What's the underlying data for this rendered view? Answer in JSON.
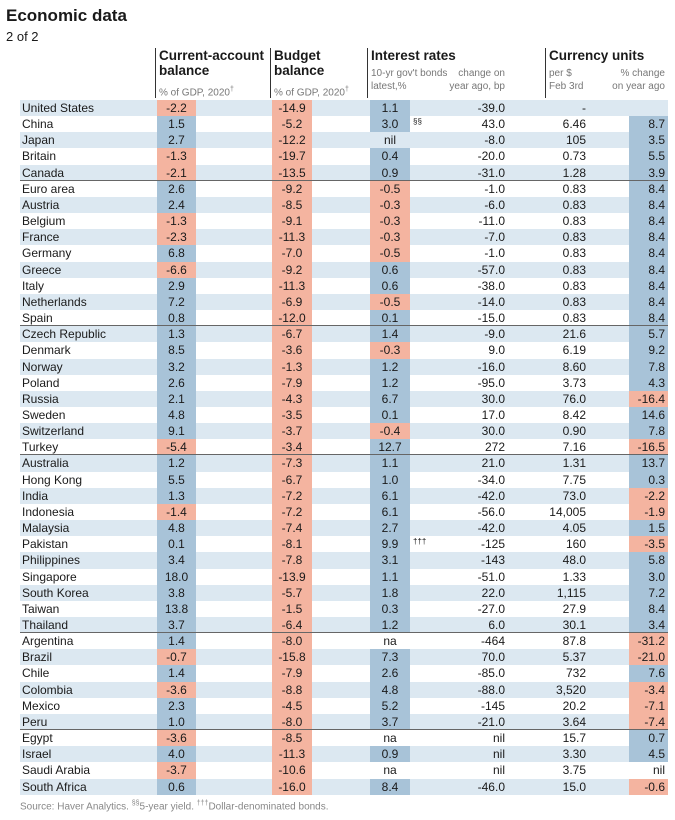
{
  "header": {
    "title": "Economic data",
    "subtitle": "2 of 2"
  },
  "columns": {
    "current_account": {
      "title": "Current-account",
      "title2": "balance",
      "sub": "% of GDP, 2020",
      "mark": "†"
    },
    "budget": {
      "title": "Budget",
      "title2": "balance",
      "sub": "% of GDP, 2020",
      "mark": "†"
    },
    "interest": {
      "title": "Interest rates",
      "sub1a": "10-yr gov't bonds",
      "sub1b": "latest,%",
      "sub2a": "change on",
      "sub2b": "year ago, bp"
    },
    "currency": {
      "title": "Currency units",
      "sub1a": "per $",
      "sub1b": "Feb 3rd",
      "sub2a": "% change",
      "sub2b": "on year ago"
    }
  },
  "footer": {
    "source": "Source: Haver Analytics. ",
    "n1mark": "§§",
    "n1": "5-year yield. ",
    "n2mark": "†††",
    "n2": "Dollar-denominated bonds."
  },
  "colors": {
    "positive": "#a8c3d8",
    "negative": "#f4b4a0",
    "row_shade": "#dce8f1"
  },
  "chart_data": {
    "type": "table",
    "title": "Economic data",
    "group_breaks_after": [
      "Canada",
      "Spain",
      "Turkey",
      "Thailand",
      "Peru"
    ],
    "rows": [
      {
        "country": "United States",
        "ca": "-2.2",
        "budget": "-14.9",
        "ir": "1.1",
        "note": "",
        "bp": "-39.0",
        "fx": "-",
        "pc": ""
      },
      {
        "country": "China",
        "ca": "1.5",
        "budget": "-5.2",
        "ir": "3.0",
        "note": "§§",
        "bp": "43.0",
        "fx": "6.46",
        "pc": "8.7"
      },
      {
        "country": "Japan",
        "ca": "2.7",
        "budget": "-12.2",
        "ir": "nil",
        "note": "",
        "bp": "-8.0",
        "fx": "105",
        "pc": "3.5"
      },
      {
        "country": "Britain",
        "ca": "-1.3",
        "budget": "-19.7",
        "ir": "0.4",
        "note": "",
        "bp": "-20.0",
        "fx": "0.73",
        "pc": "5.5"
      },
      {
        "country": "Canada",
        "ca": "-2.1",
        "budget": "-13.5",
        "ir": "0.9",
        "note": "",
        "bp": "-31.0",
        "fx": "1.28",
        "pc": "3.9"
      },
      {
        "country": "Euro area",
        "ca": "2.6",
        "budget": "-9.2",
        "ir": "-0.5",
        "note": "",
        "bp": "-1.0",
        "fx": "0.83",
        "pc": "8.4"
      },
      {
        "country": "Austria",
        "ca": "2.4",
        "budget": "-8.5",
        "ir": "-0.3",
        "note": "",
        "bp": "-6.0",
        "fx": "0.83",
        "pc": "8.4"
      },
      {
        "country": "Belgium",
        "ca": "-1.3",
        "budget": "-9.1",
        "ir": "-0.3",
        "note": "",
        "bp": "-11.0",
        "fx": "0.83",
        "pc": "8.4"
      },
      {
        "country": "France",
        "ca": "-2.3",
        "budget": "-11.3",
        "ir": "-0.3",
        "note": "",
        "bp": "-7.0",
        "fx": "0.83",
        "pc": "8.4"
      },
      {
        "country": "Germany",
        "ca": "6.8",
        "budget": "-7.0",
        "ir": "-0.5",
        "note": "",
        "bp": "-1.0",
        "fx": "0.83",
        "pc": "8.4"
      },
      {
        "country": "Greece",
        "ca": "-6.6",
        "budget": "-9.2",
        "ir": "0.6",
        "note": "",
        "bp": "-57.0",
        "fx": "0.83",
        "pc": "8.4"
      },
      {
        "country": "Italy",
        "ca": "2.9",
        "budget": "-11.3",
        "ir": "0.6",
        "note": "",
        "bp": "-38.0",
        "fx": "0.83",
        "pc": "8.4"
      },
      {
        "country": "Netherlands",
        "ca": "7.2",
        "budget": "-6.9",
        "ir": "-0.5",
        "note": "",
        "bp": "-14.0",
        "fx": "0.83",
        "pc": "8.4"
      },
      {
        "country": "Spain",
        "ca": "0.8",
        "budget": "-12.0",
        "ir": "0.1",
        "note": "",
        "bp": "-15.0",
        "fx": "0.83",
        "pc": "8.4"
      },
      {
        "country": "Czech Republic",
        "ca": "1.3",
        "budget": "-6.7",
        "ir": "1.4",
        "note": "",
        "bp": "-9.0",
        "fx": "21.6",
        "pc": "5.7"
      },
      {
        "country": "Denmark",
        "ca": "8.5",
        "budget": "-3.6",
        "ir": "-0.3",
        "note": "",
        "bp": "9.0",
        "fx": "6.19",
        "pc": "9.2"
      },
      {
        "country": "Norway",
        "ca": "3.2",
        "budget": "-1.3",
        "ir": "1.2",
        "note": "",
        "bp": "-16.0",
        "fx": "8.60",
        "pc": "7.8"
      },
      {
        "country": "Poland",
        "ca": "2.6",
        "budget": "-7.9",
        "ir": "1.2",
        "note": "",
        "bp": "-95.0",
        "fx": "3.73",
        "pc": "4.3"
      },
      {
        "country": "Russia",
        "ca": "2.1",
        "budget": "-4.3",
        "ir": "6.7",
        "note": "",
        "bp": "30.0",
        "fx": "76.0",
        "pc": "-16.4"
      },
      {
        "country": "Sweden",
        "ca": "4.8",
        "budget": "-3.5",
        "ir": "0.1",
        "note": "",
        "bp": "17.0",
        "fx": "8.42",
        "pc": "14.6"
      },
      {
        "country": "Switzerland",
        "ca": "9.1",
        "budget": "-3.7",
        "ir": "-0.4",
        "note": "",
        "bp": "30.0",
        "fx": "0.90",
        "pc": "7.8"
      },
      {
        "country": "Turkey",
        "ca": "-5.4",
        "budget": "-3.4",
        "ir": "12.7",
        "note": "",
        "bp": "272",
        "fx": "7.16",
        "pc": "-16.5"
      },
      {
        "country": "Australia",
        "ca": "1.2",
        "budget": "-7.3",
        "ir": "1.1",
        "note": "",
        "bp": "21.0",
        "fx": "1.31",
        "pc": "13.7"
      },
      {
        "country": "Hong Kong",
        "ca": "5.5",
        "budget": "-6.7",
        "ir": "1.0",
        "note": "",
        "bp": "-34.0",
        "fx": "7.75",
        "pc": "0.3"
      },
      {
        "country": "India",
        "ca": "1.3",
        "budget": "-7.2",
        "ir": "6.1",
        "note": "",
        "bp": "-42.0",
        "fx": "73.0",
        "pc": "-2.2"
      },
      {
        "country": "Indonesia",
        "ca": "-1.4",
        "budget": "-7.2",
        "ir": "6.1",
        "note": "",
        "bp": "-56.0",
        "fx": "14,005",
        "pc": "-1.9"
      },
      {
        "country": "Malaysia",
        "ca": "4.8",
        "budget": "-7.4",
        "ir": "2.7",
        "note": "",
        "bp": "-42.0",
        "fx": "4.05",
        "pc": "1.5"
      },
      {
        "country": "Pakistan",
        "ca": "0.1",
        "budget": "-8.1",
        "ir": "9.9",
        "note": "†††",
        "bp": "-125",
        "fx": "160",
        "pc": "-3.5"
      },
      {
        "country": "Philippines",
        "ca": "3.4",
        "budget": "-7.8",
        "ir": "3.1",
        "note": "",
        "bp": "-143",
        "fx": "48.0",
        "pc": "5.8"
      },
      {
        "country": "Singapore",
        "ca": "18.0",
        "budget": "-13.9",
        "ir": "1.1",
        "note": "",
        "bp": "-51.0",
        "fx": "1.33",
        "pc": "3.0"
      },
      {
        "country": "South Korea",
        "ca": "3.8",
        "budget": "-5.7",
        "ir": "1.8",
        "note": "",
        "bp": "22.0",
        "fx": "1,115",
        "pc": "7.2"
      },
      {
        "country": "Taiwan",
        "ca": "13.8",
        "budget": "-1.5",
        "ir": "0.3",
        "note": "",
        "bp": "-27.0",
        "fx": "27.9",
        "pc": "8.4"
      },
      {
        "country": "Thailand",
        "ca": "3.7",
        "budget": "-6.4",
        "ir": "1.2",
        "note": "",
        "bp": "6.0",
        "fx": "30.1",
        "pc": "3.4"
      },
      {
        "country": "Argentina",
        "ca": "1.4",
        "budget": "-8.0",
        "ir": "na",
        "note": "",
        "bp": "-464",
        "fx": "87.8",
        "pc": "-31.2"
      },
      {
        "country": "Brazil",
        "ca": "-0.7",
        "budget": "-15.8",
        "ir": "7.3",
        "note": "",
        "bp": "70.0",
        "fx": "5.37",
        "pc": "-21.0"
      },
      {
        "country": "Chile",
        "ca": "1.4",
        "budget": "-7.9",
        "ir": "2.6",
        "note": "",
        "bp": "-85.0",
        "fx": "732",
        "pc": "7.6"
      },
      {
        "country": "Colombia",
        "ca": "-3.6",
        "budget": "-8.8",
        "ir": "4.8",
        "note": "",
        "bp": "-88.0",
        "fx": "3,520",
        "pc": "-3.4"
      },
      {
        "country": "Mexico",
        "ca": "2.3",
        "budget": "-4.5",
        "ir": "5.2",
        "note": "",
        "bp": "-145",
        "fx": "20.2",
        "pc": "-7.1"
      },
      {
        "country": "Peru",
        "ca": "1.0",
        "budget": "-8.0",
        "ir": "3.7",
        "note": "",
        "bp": "-21.0",
        "fx": "3.64",
        "pc": "-7.4"
      },
      {
        "country": "Egypt",
        "ca": "-3.6",
        "budget": "-8.5",
        "ir": "na",
        "note": "",
        "bp": "nil",
        "fx": "15.7",
        "pc": "0.7"
      },
      {
        "country": "Israel",
        "ca": "4.0",
        "budget": "-11.3",
        "ir": "0.9",
        "note": "",
        "bp": "nil",
        "fx": "3.30",
        "pc": "4.5"
      },
      {
        "country": "Saudi Arabia",
        "ca": "-3.7",
        "budget": "-10.6",
        "ir": "na",
        "note": "",
        "bp": "nil",
        "fx": "3.75",
        "pc": "nil"
      },
      {
        "country": "South Africa",
        "ca": "0.6",
        "budget": "-16.0",
        "ir": "8.4",
        "note": "",
        "bp": "-46.0",
        "fx": "15.0",
        "pc": "-0.6"
      }
    ]
  }
}
